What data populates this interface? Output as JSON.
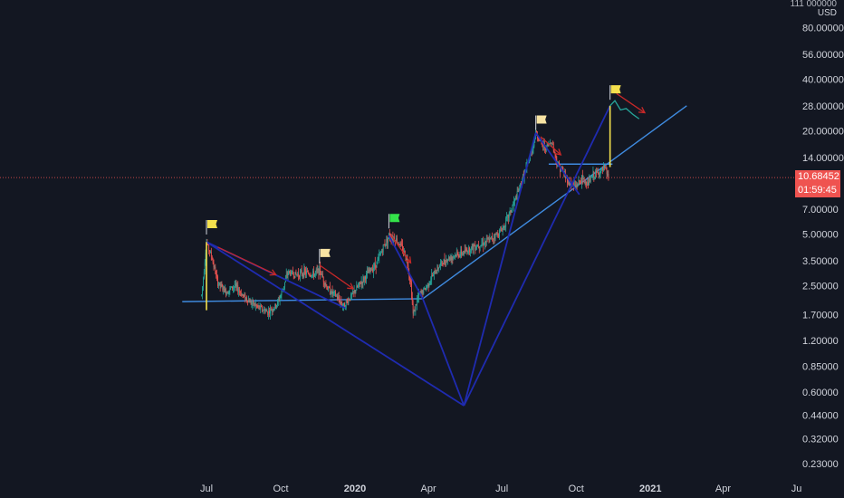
{
  "axis": {
    "currency_top": "USD",
    "currency_cut": "111 000000"
  },
  "badges": {
    "last_price": "10.68452",
    "countdown": "01:59:45"
  },
  "colors": {
    "background": "#131722",
    "up": "#26a69a",
    "down": "#ef5350",
    "wedge_line": "#1f2bb0",
    "trend_line": "#3f8be0",
    "arrow": "#c62828",
    "flag_yellow": "#f4e04d",
    "flag_cream": "#f7e3a3",
    "flag_green": "#34e34a",
    "vertical_marker": "#f4e04d",
    "projection": "#26a69a"
  },
  "chart_data": {
    "type": "candlestick",
    "scale": "log",
    "x_ticks": [
      "Jul",
      "Oct",
      "2020",
      "Apr",
      "Jul",
      "Oct",
      "2021",
      "Apr",
      "Ju"
    ],
    "x_tick_dates": [
      "2019-07-01",
      "2019-10-01",
      "2020-01-01",
      "2020-04-01",
      "2020-07-01",
      "2020-10-01",
      "2021-01-01",
      "2021-04-01",
      "2021-07-01"
    ],
    "y_ticks": [
      "80.00000",
      "56.00000",
      "40.00000",
      "28.00000",
      "20.00000",
      "14.00000",
      "7.00000",
      "5.00000",
      "3.50000",
      "2.50000",
      "1.70000",
      "1.20000",
      "0.85000",
      "0.60000",
      "0.44000",
      "0.32000",
      "0.23000"
    ],
    "y_tick_values": [
      80,
      56,
      40,
      28,
      20,
      14,
      7,
      5,
      3.5,
      2.5,
      1.7,
      1.2,
      0.85,
      0.6,
      0.44,
      0.32,
      0.23
    ],
    "last_price": 10.68452,
    "price_path": [
      [
        "2019-06-25",
        2.2
      ],
      [
        "2019-07-01",
        4.5
      ],
      [
        "2019-07-08",
        3.6
      ],
      [
        "2019-07-15",
        2.6
      ],
      [
        "2019-07-25",
        2.3
      ],
      [
        "2019-08-05",
        2.5
      ],
      [
        "2019-08-15",
        2.2
      ],
      [
        "2019-08-25",
        2.0
      ],
      [
        "2019-09-05",
        1.85
      ],
      [
        "2019-09-15",
        1.75
      ],
      [
        "2019-09-25",
        1.9
      ],
      [
        "2019-10-01",
        2.2
      ],
      [
        "2019-10-10",
        3.0
      ],
      [
        "2019-10-20",
        2.9
      ],
      [
        "2019-10-30",
        3.0
      ],
      [
        "2019-11-10",
        2.9
      ],
      [
        "2019-11-18",
        3.1
      ],
      [
        "2019-11-28",
        2.4
      ],
      [
        "2019-12-08",
        2.2
      ],
      [
        "2019-12-18",
        1.9
      ],
      [
        "2019-12-28",
        2.2
      ],
      [
        "2020-01-08",
        2.6
      ],
      [
        "2020-01-18",
        3.0
      ],
      [
        "2020-01-28",
        3.4
      ],
      [
        "2020-02-05",
        4.2
      ],
      [
        "2020-02-12",
        4.9
      ],
      [
        "2020-02-20",
        4.7
      ],
      [
        "2020-02-28",
        4.2
      ],
      [
        "2020-03-05",
        3.6
      ],
      [
        "2020-03-10",
        2.6
      ],
      [
        "2020-03-13",
        1.7
      ],
      [
        "2020-03-20",
        2.2
      ],
      [
        "2020-03-28",
        2.4
      ],
      [
        "2020-04-05",
        2.8
      ],
      [
        "2020-04-15",
        3.3
      ],
      [
        "2020-04-25",
        3.6
      ],
      [
        "2020-05-05",
        3.8
      ],
      [
        "2020-05-15",
        3.9
      ],
      [
        "2020-05-25",
        4.2
      ],
      [
        "2020-06-05",
        4.4
      ],
      [
        "2020-06-15",
        4.6
      ],
      [
        "2020-06-25",
        5.0
      ],
      [
        "2020-07-01",
        5.3
      ],
      [
        "2020-07-10",
        6.5
      ],
      [
        "2020-07-20",
        8.5
      ],
      [
        "2020-07-28",
        11.0
      ],
      [
        "2020-08-05",
        14.0
      ],
      [
        "2020-08-12",
        19.5
      ],
      [
        "2020-08-18",
        17.0
      ],
      [
        "2020-08-25",
        16.0
      ],
      [
        "2020-09-01",
        17.5
      ],
      [
        "2020-09-07",
        13.0
      ],
      [
        "2020-09-15",
        11.5
      ],
      [
        "2020-09-22",
        10.0
      ],
      [
        "2020-09-30",
        9.5
      ],
      [
        "2020-10-08",
        10.5
      ],
      [
        "2020-10-15",
        9.8
      ],
      [
        "2020-10-22",
        11.0
      ],
      [
        "2020-10-30",
        11.5
      ],
      [
        "2020-11-06",
        12.0
      ],
      [
        "2020-11-10",
        10.68452
      ]
    ],
    "projection_path": [
      [
        "2020-11-12",
        28.0
      ],
      [
        "2020-11-18",
        30.0
      ],
      [
        "2020-11-25",
        26.5
      ],
      [
        "2020-12-02",
        27.0
      ],
      [
        "2020-12-10",
        25.0
      ],
      [
        "2020-12-18",
        23.5
      ]
    ],
    "drawings": {
      "trend_lines": [
        {
          "from": [
            "2019-06-01",
            2.02
          ],
          "to": [
            "2020-03-25",
            2.1
          ]
        },
        {
          "from": [
            "2020-03-25",
            2.1
          ],
          "to": [
            "2021-02-15",
            28.0
          ]
        },
        {
          "from": [
            "2020-08-28",
            12.8
          ],
          "to": [
            "2020-11-15",
            12.8
          ]
        }
      ],
      "wedge_lines": [
        {
          "from": [
            "2019-07-01",
            4.5
          ],
          "to": [
            "2020-05-15",
            0.5
          ]
        },
        {
          "from": [
            "2020-05-15",
            0.5
          ],
          "to": [
            "2020-11-12",
            28.0
          ]
        },
        {
          "from": [
            "2020-05-15",
            0.5
          ],
          "to": [
            "2020-08-12",
            19.5
          ]
        },
        {
          "from": [
            "2019-07-01",
            4.5
          ],
          "to": [
            "2019-12-20",
            1.85
          ]
        },
        {
          "from": [
            "2020-02-12",
            4.9
          ],
          "to": [
            "2020-03-25",
            2.1
          ]
        },
        {
          "from": [
            "2020-08-12",
            19.5
          ],
          "to": [
            "2020-10-05",
            8.5
          ]
        },
        {
          "from": [
            "2020-05-15",
            0.5
          ],
          "to": [
            "2020-03-25",
            2.1
          ]
        }
      ],
      "vertical_markers": [
        {
          "date": "2019-07-01",
          "low": 1.8,
          "high": 4.5
        },
        {
          "date": "2020-11-12",
          "low": 12.3,
          "high": 28.0
        }
      ],
      "arrows": [
        {
          "from": [
            "2019-07-15",
            4.2
          ],
          "to": [
            "2019-09-25",
            2.9
          ]
        },
        {
          "from": [
            "2019-11-18",
            3.3
          ],
          "to": [
            "2019-12-30",
            2.4
          ]
        },
        {
          "from": [
            "2020-02-15",
            4.9
          ],
          "to": [
            "2020-03-10",
            3.4
          ]
        },
        {
          "from": [
            "2020-08-18",
            18.5
          ],
          "to": [
            "2020-09-12",
            14.5
          ]
        },
        {
          "from": [
            "2020-11-20",
            33.0
          ],
          "to": [
            "2020-12-25",
            25.5
          ]
        }
      ],
      "flags": [
        {
          "date": "2019-07-01",
          "price": 5.9,
          "color": "yellow"
        },
        {
          "date": "2019-11-18",
          "price": 4.0,
          "color": "cream"
        },
        {
          "date": "2020-02-12",
          "price": 6.4,
          "color": "green"
        },
        {
          "date": "2020-08-12",
          "price": 24.0,
          "color": "cream"
        },
        {
          "date": "2020-11-12",
          "price": 36.0,
          "color": "yellow"
        }
      ]
    }
  }
}
